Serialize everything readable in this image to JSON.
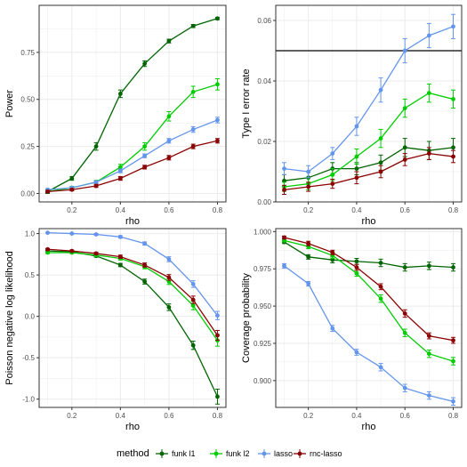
{
  "colors": {
    "funk_l1": "#006400",
    "funk_l2": "#00CD00",
    "lasso": "#6495ED",
    "rnc_lasso": "#8B0000",
    "grid": "#ebebeb",
    "panel_border": "#333333",
    "reference_line": "#000000"
  },
  "legend": {
    "title": "method",
    "entries": [
      {
        "key": "funk_l1",
        "label": "funk l1"
      },
      {
        "key": "funk_l2",
        "label": "funk l2"
      },
      {
        "key": "lasso",
        "label": "lasso"
      },
      {
        "key": "rnc_lasso",
        "label": "rnc-lasso"
      }
    ]
  },
  "chart_data": [
    {
      "type": "line",
      "xlabel": "rho",
      "ylabel": "Power",
      "x": [
        0.1,
        0.2,
        0.3,
        0.4,
        0.5,
        0.6,
        0.7,
        0.8
      ],
      "xticks": [
        0.2,
        0.4,
        0.6,
        0.8
      ],
      "xtick_labels": [
        "0.2",
        "0.4",
        "0.6",
        "0.8"
      ],
      "xlim": [
        0.065,
        0.835
      ],
      "ylim": [
        -0.045,
        1.0
      ],
      "yticks": [
        0,
        0.25,
        0.5,
        0.75
      ],
      "ytick_labels": [
        "0.00",
        "0.25",
        "0.50",
        "0.75"
      ],
      "grid": true,
      "series": [
        {
          "name": "funk l1",
          "color_key": "funk_l1",
          "values": [
            0.01,
            0.08,
            0.25,
            0.53,
            0.69,
            0.81,
            0.89,
            0.93
          ],
          "err": [
            0.01,
            0.01,
            0.02,
            0.02,
            0.015,
            0.01,
            0.008,
            0.006
          ]
        },
        {
          "name": "funk l2",
          "color_key": "funk_l2",
          "values": [
            0.01,
            0.03,
            0.06,
            0.14,
            0.25,
            0.41,
            0.54,
            0.58
          ],
          "err": [
            0.005,
            0.008,
            0.01,
            0.015,
            0.02,
            0.025,
            0.03,
            0.03
          ]
        },
        {
          "name": "lasso",
          "color_key": "lasso",
          "values": [
            0.02,
            0.03,
            0.06,
            0.12,
            0.2,
            0.28,
            0.34,
            0.39
          ],
          "err": [
            0.005,
            0.006,
            0.008,
            0.01,
            0.01,
            0.012,
            0.015,
            0.015
          ]
        },
        {
          "name": "rnc-lasso",
          "color_key": "rnc_lasso",
          "values": [
            0.01,
            0.02,
            0.04,
            0.08,
            0.14,
            0.19,
            0.25,
            0.28
          ],
          "err": [
            0.005,
            0.006,
            0.008,
            0.01,
            0.01,
            0.012,
            0.012,
            0.012
          ]
        }
      ]
    },
    {
      "type": "line",
      "xlabel": "rho",
      "ylabel": "Type I error rate",
      "x": [
        0.1,
        0.2,
        0.3,
        0.4,
        0.5,
        0.6,
        0.7,
        0.8
      ],
      "xticks": [
        0.2,
        0.4,
        0.6,
        0.8
      ],
      "xtick_labels": [
        "0.2",
        "0.4",
        "0.6",
        "0.8"
      ],
      "xlim": [
        0.065,
        0.835
      ],
      "ylim": [
        0.0,
        0.065
      ],
      "yticks": [
        0.0,
        0.02,
        0.04,
        0.06
      ],
      "ytick_labels": [
        "0.00",
        "0.02",
        "0.04",
        "0.06"
      ],
      "hline": 0.05,
      "grid": true,
      "series": [
        {
          "name": "funk l1",
          "color_key": "funk_l1",
          "values": [
            0.007,
            0.008,
            0.011,
            0.011,
            0.013,
            0.018,
            0.017,
            0.018
          ],
          "err": [
            0.002,
            0.002,
            0.002,
            0.002,
            0.0025,
            0.003,
            0.003,
            0.003
          ]
        },
        {
          "name": "funk l2",
          "color_key": "funk_l2",
          "values": [
            0.005,
            0.006,
            0.009,
            0.015,
            0.021,
            0.031,
            0.036,
            0.034
          ],
          "err": [
            0.0015,
            0.002,
            0.002,
            0.0025,
            0.003,
            0.003,
            0.003,
            0.003
          ]
        },
        {
          "name": "lasso",
          "color_key": "lasso",
          "values": [
            0.011,
            0.01,
            0.016,
            0.025,
            0.037,
            0.05,
            0.055,
            0.058
          ],
          "err": [
            0.002,
            0.002,
            0.002,
            0.003,
            0.004,
            0.004,
            0.004,
            0.004
          ]
        },
        {
          "name": "rnc-lasso",
          "color_key": "rnc_lasso",
          "values": [
            0.004,
            0.005,
            0.006,
            0.008,
            0.01,
            0.014,
            0.016,
            0.015
          ],
          "err": [
            0.0015,
            0.0015,
            0.0015,
            0.002,
            0.002,
            0.002,
            0.002,
            0.002
          ]
        }
      ]
    },
    {
      "type": "line",
      "xlabel": "rho",
      "ylabel": "Poisson negative log likelihood",
      "x": [
        0.1,
        0.2,
        0.3,
        0.4,
        0.5,
        0.6,
        0.7,
        0.8
      ],
      "xticks": [
        0.2,
        0.4,
        0.6,
        0.8
      ],
      "xtick_labels": [
        "0.2",
        "0.4",
        "0.6",
        "0.8"
      ],
      "xlim": [
        0.065,
        0.835
      ],
      "ylim": [
        -1.1,
        1.06
      ],
      "yticks": [
        -1.0,
        -0.5,
        0.0,
        0.5,
        1.0
      ],
      "ytick_labels": [
        "-1.0",
        "-0.5",
        "0.0",
        "0.5",
        "1.0"
      ],
      "grid": true,
      "series": [
        {
          "name": "funk l1",
          "color_key": "funk_l1",
          "values": [
            0.79,
            0.78,
            0.73,
            0.62,
            0.42,
            0.11,
            -0.35,
            -0.97
          ],
          "err": [
            0.01,
            0.01,
            0.015,
            0.02,
            0.03,
            0.04,
            0.05,
            0.09
          ]
        },
        {
          "name": "funk l2",
          "color_key": "funk_l2",
          "values": [
            0.77,
            0.77,
            0.74,
            0.7,
            0.6,
            0.42,
            0.13,
            -0.29
          ],
          "err": [
            0.01,
            0.01,
            0.015,
            0.02,
            0.025,
            0.035,
            0.05,
            0.07
          ]
        },
        {
          "name": "lasso",
          "color_key": "lasso",
          "values": [
            1.01,
            1.0,
            0.99,
            0.96,
            0.88,
            0.69,
            0.39,
            0.01
          ],
          "err": [
            0.005,
            0.005,
            0.01,
            0.015,
            0.02,
            0.03,
            0.04,
            0.05
          ]
        },
        {
          "name": "rnc-lasso",
          "color_key": "rnc_lasso",
          "values": [
            0.81,
            0.79,
            0.76,
            0.72,
            0.62,
            0.47,
            0.2,
            -0.23
          ],
          "err": [
            0.01,
            0.01,
            0.015,
            0.02,
            0.025,
            0.035,
            0.045,
            0.06
          ]
        }
      ]
    },
    {
      "type": "line",
      "xlabel": "rho",
      "ylabel": "Coverage probability",
      "x": [
        0.1,
        0.2,
        0.3,
        0.4,
        0.5,
        0.6,
        0.7,
        0.8
      ],
      "xticks": [
        0.2,
        0.4,
        0.6,
        0.8
      ],
      "xtick_labels": [
        "0.2",
        "0.4",
        "0.6",
        "0.8"
      ],
      "xlim": [
        0.065,
        0.835
      ],
      "ylim": [
        0.882,
        1.002
      ],
      "yticks": [
        0.9,
        0.925,
        0.95,
        0.975,
        1.0
      ],
      "ytick_labels": [
        "0.900",
        "0.925",
        "0.950",
        "0.975",
        "1.000"
      ],
      "grid": true,
      "series": [
        {
          "name": "funk l1",
          "color_key": "funk_l1",
          "values": [
            0.993,
            0.983,
            0.981,
            0.98,
            0.979,
            0.976,
            0.977,
            0.976
          ],
          "err": [
            0.001,
            0.0015,
            0.002,
            0.002,
            0.0025,
            0.0025,
            0.0025,
            0.0025
          ]
        },
        {
          "name": "funk l2",
          "color_key": "funk_l2",
          "values": [
            0.994,
            0.99,
            0.984,
            0.972,
            0.955,
            0.932,
            0.918,
            0.913
          ],
          "err": [
            0.001,
            0.0015,
            0.002,
            0.002,
            0.0025,
            0.0025,
            0.0025,
            0.0025
          ]
        },
        {
          "name": "lasso",
          "color_key": "lasso",
          "values": [
            0.977,
            0.965,
            0.935,
            0.919,
            0.909,
            0.895,
            0.89,
            0.886
          ],
          "err": [
            0.0015,
            0.0015,
            0.002,
            0.002,
            0.0025,
            0.0025,
            0.0025,
            0.0025
          ]
        },
        {
          "name": "rnc-lasso",
          "color_key": "rnc_lasso",
          "values": [
            0.996,
            0.992,
            0.986,
            0.976,
            0.963,
            0.945,
            0.93,
            0.927
          ],
          "err": [
            0.001,
            0.0015,
            0.0015,
            0.002,
            0.002,
            0.0025,
            0.002,
            0.002
          ]
        }
      ]
    }
  ]
}
